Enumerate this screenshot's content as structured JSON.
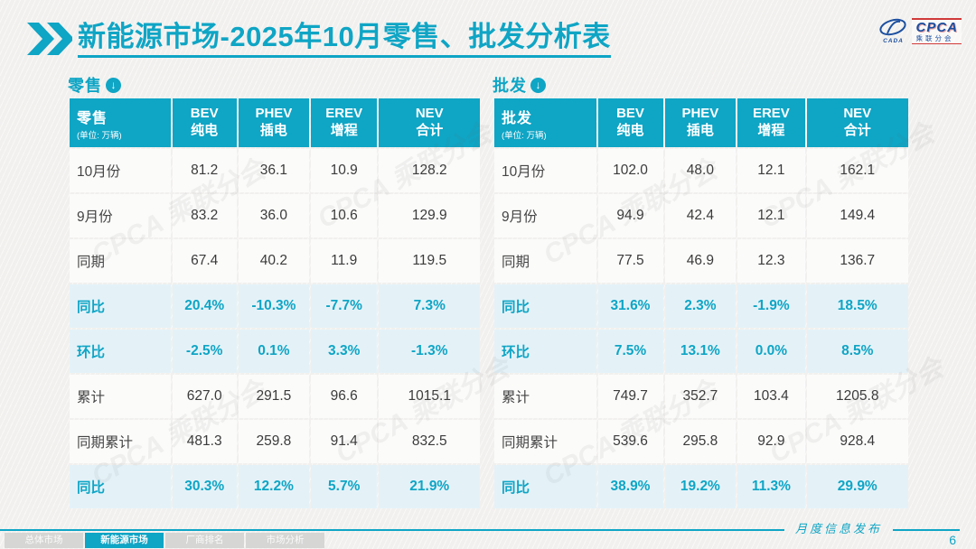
{
  "page": {
    "title_primary": "新能源市场",
    "title_secondary": "-2025年10月零售、批发分析表",
    "footer_caption": "月度信息发布",
    "page_number": "6",
    "watermark": "CPCA 乘联分会"
  },
  "logo": {
    "brand": "CPCA",
    "brand_sub": "乘联分会",
    "swoosh_label": "CADA"
  },
  "nav_tabs": [
    {
      "id": "overall-market",
      "label": "总体市场",
      "active": false
    },
    {
      "id": "nev-market",
      "label": "新能源市场",
      "active": true
    },
    {
      "id": "oem-ranking",
      "label": "厂商排名",
      "active": false
    },
    {
      "id": "market-analysis",
      "label": "市场分析",
      "active": false
    }
  ],
  "colors": {
    "accent": "#0fa5c5",
    "highlight_row_bg": "#e4f2f8",
    "cell_bg": "#fbfbfa",
    "logo_blue": "#1b4fa0",
    "logo_red": "#d03a3a"
  },
  "chart_data": [
    {
      "type": "table",
      "title": "零售",
      "unit": "(单位: 万辆)",
      "columns": [
        {
          "en": "BEV",
          "cn": "纯电"
        },
        {
          "en": "PHEV",
          "cn": "插电"
        },
        {
          "en": "EREV",
          "cn": "增程"
        },
        {
          "en": "NEV",
          "cn": "合计"
        }
      ],
      "rows": [
        {
          "label": "10月份",
          "values": [
            "81.2",
            "36.1",
            "10.9",
            "128.2"
          ],
          "highlight": false
        },
        {
          "label": "9月份",
          "values": [
            "83.2",
            "36.0",
            "10.6",
            "129.9"
          ],
          "highlight": false
        },
        {
          "label": "同期",
          "values": [
            "67.4",
            "40.2",
            "11.9",
            "119.5"
          ],
          "highlight": false
        },
        {
          "label": "同比",
          "values": [
            "20.4%",
            "-10.3%",
            "-7.7%",
            "7.3%"
          ],
          "highlight": true
        },
        {
          "label": "环比",
          "values": [
            "-2.5%",
            "0.1%",
            "3.3%",
            "-1.3%"
          ],
          "highlight": true
        },
        {
          "label": "累计",
          "values": [
            "627.0",
            "291.5",
            "96.6",
            "1015.1"
          ],
          "highlight": false
        },
        {
          "label": "同期累计",
          "values": [
            "481.3",
            "259.8",
            "91.4",
            "832.5"
          ],
          "highlight": false
        },
        {
          "label": "同比",
          "values": [
            "30.3%",
            "12.2%",
            "5.7%",
            "21.9%"
          ],
          "highlight": true
        }
      ]
    },
    {
      "type": "table",
      "title": "批发",
      "unit": "(单位: 万辆)",
      "columns": [
        {
          "en": "BEV",
          "cn": "纯电"
        },
        {
          "en": "PHEV",
          "cn": "插电"
        },
        {
          "en": "EREV",
          "cn": "增程"
        },
        {
          "en": "NEV",
          "cn": "合计"
        }
      ],
      "rows": [
        {
          "label": "10月份",
          "values": [
            "102.0",
            "48.0",
            "12.1",
            "162.1"
          ],
          "highlight": false
        },
        {
          "label": "9月份",
          "values": [
            "94.9",
            "42.4",
            "12.1",
            "149.4"
          ],
          "highlight": false
        },
        {
          "label": "同期",
          "values": [
            "77.5",
            "46.9",
            "12.3",
            "136.7"
          ],
          "highlight": false
        },
        {
          "label": "同比",
          "values": [
            "31.6%",
            "2.3%",
            "-1.9%",
            "18.5%"
          ],
          "highlight": true
        },
        {
          "label": "环比",
          "values": [
            "7.5%",
            "13.1%",
            "0.0%",
            "8.5%"
          ],
          "highlight": true
        },
        {
          "label": "累计",
          "values": [
            "749.7",
            "352.7",
            "103.4",
            "1205.8"
          ],
          "highlight": false
        },
        {
          "label": "同期累计",
          "values": [
            "539.6",
            "295.8",
            "92.9",
            "928.4"
          ],
          "highlight": false
        },
        {
          "label": "同比",
          "values": [
            "38.9%",
            "19.2%",
            "11.3%",
            "29.9%"
          ],
          "highlight": true
        }
      ]
    }
  ]
}
